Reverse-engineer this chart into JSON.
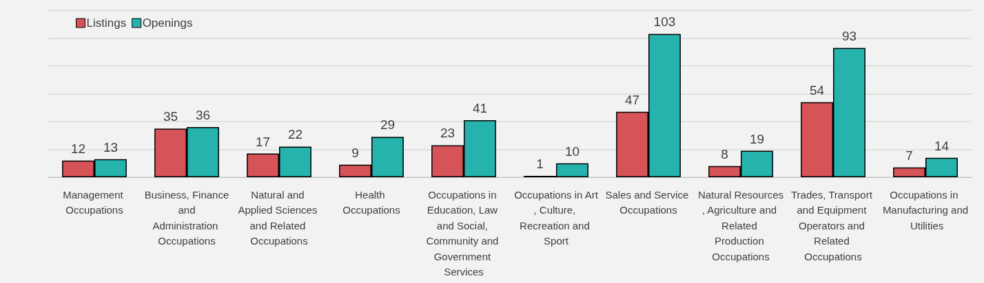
{
  "chart_data": {
    "type": "bar",
    "categories": [
      "Management Occupations",
      "Business, Finance and Administration Occupations",
      "Natural and Applied Sciences and Related Occupations",
      "Health Occupations",
      "Occupations in Education, Law and Social, Community and Government Services",
      "Occupations in Art, Culture, Recreation and Sport",
      "Sales and Service Occupations",
      "Natural Resources, Agriculture and Related Production Occupations",
      "Trades, Transport and Equipment Operators and Related Occupations",
      "Occupations in Manufacturing and Utilities"
    ],
    "series": [
      {
        "name": "Listings",
        "color": "#d65357",
        "values": [
          12,
          35,
          17,
          9,
          23,
          1,
          47,
          8,
          54,
          7
        ]
      },
      {
        "name": "Openings",
        "color": "#26b3ad",
        "values": [
          13,
          36,
          22,
          29,
          41,
          10,
          103,
          19,
          93,
          14
        ]
      }
    ],
    "ylim": [
      0,
      120
    ],
    "grid": "y",
    "legend": "top left",
    "tick_labels": "x",
    "data_labels": true
  }
}
